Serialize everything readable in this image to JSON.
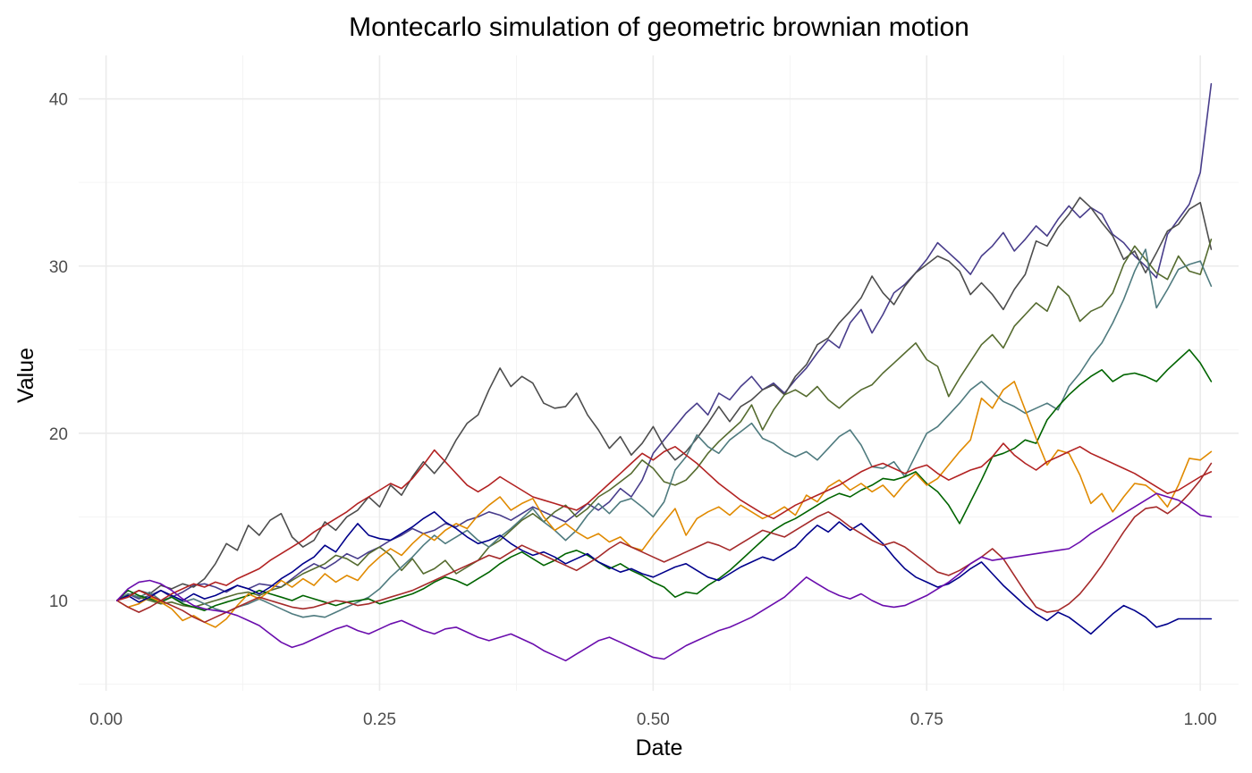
{
  "chart_data": {
    "type": "line",
    "title": "Montecarlo simulation of geometric brownian motion",
    "xlabel": "Date",
    "ylabel": "Value",
    "xlim": [
      -0.025,
      1.035
    ],
    "ylim": [
      4.6,
      42.6
    ],
    "x_ticks": [
      0,
      0.25,
      0.5,
      0.75,
      1
    ],
    "x_tick_labels": [
      "0.00",
      "0.25",
      "0.50",
      "0.75",
      "1.00"
    ],
    "y_ticks": [
      10,
      20,
      30,
      40
    ],
    "y_tick_labels": [
      "10",
      "20",
      "30",
      "40"
    ],
    "grid": true,
    "legend": "none",
    "x": [
      0.01,
      0.02,
      0.03,
      0.04,
      0.05,
      0.06,
      0.07,
      0.08,
      0.09,
      0.1,
      0.11,
      0.12,
      0.13,
      0.14,
      0.15,
      0.16,
      0.17,
      0.18,
      0.19,
      0.2,
      0.21,
      0.22,
      0.23,
      0.24,
      0.25,
      0.26,
      0.27,
      0.28,
      0.29,
      0.3,
      0.31,
      0.32,
      0.33,
      0.34,
      0.35,
      0.36,
      0.37,
      0.38,
      0.39,
      0.4,
      0.41,
      0.42,
      0.43,
      0.44,
      0.45,
      0.46,
      0.47,
      0.48,
      0.49,
      0.5,
      0.51,
      0.52,
      0.53,
      0.54,
      0.55,
      0.56,
      0.57,
      0.58,
      0.59,
      0.6,
      0.61,
      0.62,
      0.63,
      0.64,
      0.65,
      0.66,
      0.67,
      0.68,
      0.69,
      0.7,
      0.71,
      0.72,
      0.73,
      0.74,
      0.75,
      0.76,
      0.77,
      0.78,
      0.79,
      0.8,
      0.81,
      0.82,
      0.83,
      0.84,
      0.85,
      0.86,
      0.87,
      0.88,
      0.89,
      0.9,
      0.91,
      0.92,
      0.93,
      0.94,
      0.95,
      0.96,
      0.97,
      0.98,
      0.99,
      1.0,
      1.01
    ],
    "series": [
      {
        "color": "#483d8b",
        "values": [
          10.0,
          10.4,
          10.1,
          10.3,
          10.6,
          10.2,
          10.5,
          10.9,
          11.0,
          10.8,
          10.5,
          10.9,
          10.7,
          11.0,
          10.9,
          10.8,
          11.3,
          11.8,
          12.2,
          11.9,
          12.3,
          12.8,
          12.5,
          12.9,
          13.2,
          13.6,
          13.9,
          14.3,
          14.0,
          14.2,
          14.6,
          14.4,
          14.8,
          15.0,
          15.3,
          15.1,
          14.8,
          15.2,
          15.6,
          15.3,
          15.0,
          14.7,
          15.2,
          15.8,
          15.4,
          15.9,
          16.7,
          16.2,
          17.2,
          18.8,
          19.6,
          20.4,
          21.2,
          21.8,
          21.1,
          22.4,
          22.0,
          22.8,
          23.4,
          22.6,
          23.0,
          22.4,
          23.2,
          23.9,
          24.8,
          25.6,
          25.1,
          26.6,
          27.4,
          26.0,
          27.1,
          28.4,
          28.9,
          29.6,
          30.4,
          31.4,
          30.8,
          30.2,
          29.5,
          30.6,
          31.2,
          32.0,
          30.9,
          31.6,
          32.4,
          31.8,
          32.8,
          33.6,
          32.9,
          33.5,
          33.1,
          31.9,
          31.4,
          30.6,
          30.0,
          29.3,
          31.9,
          32.8,
          33.7,
          35.6,
          40.9
        ]
      },
      {
        "color": "#4d4d4d",
        "values": [
          10.0,
          10.3,
          10.6,
          10.4,
          10.9,
          10.7,
          11.0,
          10.8,
          11.3,
          12.2,
          13.4,
          13.0,
          14.5,
          13.9,
          14.8,
          15.2,
          13.8,
          13.2,
          13.6,
          14.7,
          14.2,
          15.0,
          15.4,
          16.2,
          15.6,
          16.9,
          16.3,
          17.4,
          18.3,
          17.6,
          18.4,
          19.6,
          20.6,
          21.1,
          22.6,
          23.9,
          22.8,
          23.4,
          23.0,
          21.8,
          21.5,
          21.6,
          22.4,
          21.1,
          20.2,
          19.1,
          19.8,
          18.7,
          19.4,
          20.4,
          19.2,
          18.4,
          18.9,
          19.7,
          20.6,
          21.6,
          20.7,
          21.6,
          22.0,
          22.6,
          22.9,
          22.3,
          23.4,
          24.1,
          25.3,
          25.7,
          26.6,
          27.3,
          28.1,
          29.4,
          28.4,
          27.7,
          28.8,
          29.6,
          30.1,
          30.6,
          30.3,
          29.7,
          28.3,
          29.0,
          28.3,
          27.4,
          28.6,
          29.5,
          31.5,
          31.2,
          32.3,
          33.1,
          34.1,
          33.5,
          32.6,
          31.8,
          30.4,
          30.9,
          29.6,
          30.8,
          32.1,
          32.5,
          33.4,
          33.8,
          31.0
        ]
      },
      {
        "color": "#556b2f",
        "values": [
          10.0,
          10.4,
          10.2,
          10.0,
          9.8,
          9.9,
          9.7,
          9.6,
          9.8,
          10.0,
          10.2,
          10.4,
          10.5,
          10.3,
          10.6,
          10.8,
          11.2,
          11.6,
          11.9,
          12.2,
          12.7,
          12.5,
          12.1,
          12.8,
          13.2,
          12.7,
          11.8,
          12.5,
          11.6,
          11.9,
          12.4,
          11.6,
          12.0,
          12.4,
          13.2,
          13.6,
          14.2,
          14.8,
          15.2,
          14.7,
          15.3,
          15.7,
          15.0,
          15.5,
          16.2,
          16.6,
          17.1,
          17.6,
          18.4,
          17.9,
          17.1,
          16.9,
          17.2,
          17.9,
          18.8,
          19.5,
          20.1,
          20.7,
          21.7,
          20.2,
          21.4,
          22.3,
          22.6,
          22.2,
          22.8,
          22.0,
          21.5,
          22.1,
          22.6,
          22.9,
          23.6,
          24.2,
          24.8,
          25.4,
          24.4,
          24.0,
          22.2,
          23.3,
          24.3,
          25.3,
          25.9,
          25.1,
          26.4,
          27.1,
          27.8,
          27.3,
          28.8,
          28.2,
          26.7,
          27.3,
          27.6,
          28.4,
          30.1,
          31.2,
          30.4,
          29.6,
          29.2,
          30.6,
          29.7,
          29.5,
          31.6
        ]
      },
      {
        "color": "#4f7b7f",
        "values": [
          10.0,
          10.4,
          10.2,
          10.5,
          10.0,
          10.2,
          9.9,
          10.1,
          9.8,
          9.5,
          9.3,
          9.6,
          9.8,
          10.1,
          9.8,
          9.5,
          9.2,
          9.0,
          9.1,
          9.0,
          9.3,
          9.6,
          9.9,
          10.2,
          10.7,
          11.4,
          12.0,
          12.6,
          13.3,
          13.9,
          13.4,
          13.8,
          14.2,
          13.6,
          13.2,
          13.8,
          14.3,
          14.9,
          15.5,
          14.7,
          14.2,
          13.6,
          14.2,
          15.1,
          15.8,
          15.2,
          15.9,
          16.1,
          15.6,
          15.0,
          15.9,
          17.8,
          18.6,
          19.9,
          19.2,
          18.8,
          19.6,
          20.1,
          20.6,
          19.7,
          19.4,
          18.9,
          18.6,
          18.9,
          18.4,
          19.1,
          19.8,
          20.2,
          19.3,
          18.0,
          17.9,
          18.3,
          17.4,
          18.7,
          20.0,
          20.4,
          21.1,
          21.8,
          22.6,
          23.1,
          22.5,
          21.9,
          21.6,
          21.2,
          21.5,
          21.8,
          21.4,
          22.8,
          23.6,
          24.6,
          25.4,
          26.6,
          28.0,
          29.7,
          31.0,
          27.5,
          28.6,
          29.8,
          30.1,
          30.3,
          28.8
        ]
      },
      {
        "color": "#006400",
        "values": [
          10.0,
          10.6,
          10.3,
          10.1,
          9.9,
          10.2,
          9.8,
          9.6,
          9.4,
          9.7,
          9.9,
          10.1,
          10.3,
          10.6,
          10.4,
          10.2,
          10.0,
          10.3,
          10.1,
          9.9,
          9.7,
          9.9,
          10.0,
          10.1,
          9.8,
          10.0,
          10.2,
          10.4,
          10.7,
          11.1,
          11.4,
          11.2,
          10.9,
          11.3,
          11.7,
          12.2,
          12.6,
          12.9,
          12.5,
          12.1,
          12.4,
          12.8,
          13.0,
          12.7,
          12.3,
          11.9,
          12.2,
          11.8,
          11.5,
          11.1,
          10.8,
          10.2,
          10.5,
          10.4,
          10.9,
          11.3,
          11.8,
          12.4,
          13.0,
          13.6,
          14.2,
          14.6,
          14.9,
          15.3,
          15.7,
          16.1,
          16.4,
          16.2,
          16.6,
          16.9,
          17.3,
          17.2,
          17.4,
          17.7,
          17.0,
          16.5,
          15.7,
          14.6,
          15.9,
          17.2,
          18.6,
          18.8,
          19.1,
          19.6,
          19.4,
          20.8,
          21.6,
          22.3,
          22.9,
          23.4,
          23.8,
          23.1,
          23.5,
          23.6,
          23.4,
          23.1,
          23.8,
          24.4,
          25.0,
          24.2,
          23.1
        ]
      },
      {
        "color": "#e08a00",
        "values": [
          10.0,
          9.6,
          9.8,
          10.2,
          9.9,
          9.5,
          8.8,
          9.1,
          8.7,
          8.4,
          8.9,
          9.7,
          10.4,
          10.1,
          10.6,
          11.2,
          10.8,
          11.3,
          10.9,
          11.6,
          11.1,
          11.5,
          11.2,
          12.0,
          12.6,
          13.1,
          12.7,
          13.4,
          14.0,
          13.6,
          14.2,
          14.6,
          14.3,
          15.1,
          15.7,
          16.2,
          15.4,
          15.8,
          16.1,
          15.0,
          14.2,
          14.6,
          14.1,
          13.7,
          14.0,
          13.5,
          13.8,
          13.2,
          13.0,
          13.9,
          14.7,
          15.5,
          13.9,
          14.9,
          15.3,
          15.6,
          15.1,
          15.7,
          15.3,
          14.9,
          15.2,
          15.6,
          15.1,
          16.3,
          15.9,
          16.8,
          17.2,
          16.6,
          17.0,
          16.5,
          16.9,
          16.2,
          17.0,
          17.6,
          16.9,
          17.3,
          18.1,
          18.9,
          19.6,
          22.1,
          21.5,
          22.6,
          23.1,
          21.4,
          19.7,
          18.1,
          19.0,
          18.8,
          17.5,
          15.8,
          16.4,
          15.3,
          16.2,
          17.0,
          16.9,
          16.4,
          15.6,
          16.9,
          18.5,
          18.4,
          18.9
        ]
      },
      {
        "color": "#00008b",
        "values": [
          10.0,
          10.3,
          9.9,
          10.2,
          10.6,
          10.3,
          10.0,
          10.4,
          10.1,
          10.3,
          10.6,
          10.9,
          10.7,
          10.4,
          10.8,
          11.3,
          11.7,
          12.2,
          12.6,
          13.3,
          12.9,
          13.8,
          14.6,
          13.9,
          13.7,
          13.6,
          14.0,
          14.4,
          14.9,
          15.3,
          14.7,
          14.3,
          13.8,
          13.4,
          13.6,
          13.9,
          13.4,
          13.0,
          12.7,
          12.9,
          12.6,
          12.2,
          12.5,
          12.8,
          12.3,
          12.0,
          11.7,
          11.9,
          11.6,
          11.4,
          11.7,
          12.0,
          12.2,
          11.8,
          11.4,
          11.2,
          11.6,
          12.0,
          12.3,
          12.6,
          12.4,
          12.8,
          13.2,
          13.9,
          14.5,
          14.1,
          14.7,
          14.2,
          14.6,
          14.0,
          13.4,
          12.6,
          11.9,
          11.4,
          11.1,
          10.8,
          11.0,
          11.4,
          11.9,
          12.3,
          11.6,
          10.9,
          10.3,
          9.7,
          9.2,
          8.8,
          9.3,
          9.0,
          8.5,
          8.0,
          8.6,
          9.2,
          9.7,
          9.4,
          9.0,
          8.4,
          8.6,
          8.9,
          8.9,
          8.9,
          8.9
        ]
      },
      {
        "color": "#b22222",
        "values": [
          10.0,
          10.2,
          10.6,
          10.3,
          10.0,
          10.4,
          10.7,
          11.0,
          10.8,
          11.1,
          10.9,
          11.3,
          11.6,
          11.9,
          12.4,
          12.8,
          13.2,
          13.6,
          14.1,
          14.5,
          14.9,
          15.3,
          15.8,
          16.2,
          16.6,
          17.0,
          16.7,
          17.3,
          18.1,
          19.0,
          18.3,
          17.6,
          16.9,
          16.5,
          16.9,
          17.4,
          17.0,
          16.6,
          16.2,
          16.0,
          15.8,
          15.6,
          15.4,
          15.8,
          16.4,
          17.0,
          17.6,
          18.2,
          18.8,
          18.4,
          18.9,
          19.2,
          18.7,
          18.2,
          17.6,
          17.0,
          16.5,
          16.0,
          15.6,
          15.2,
          14.9,
          15.3,
          15.7,
          16.0,
          16.3,
          16.6,
          16.9,
          17.3,
          17.7,
          18.0,
          18.2,
          17.9,
          17.6,
          17.9,
          18.1,
          17.6,
          17.2,
          17.5,
          17.8,
          18.0,
          18.6,
          19.4,
          18.7,
          18.2,
          17.8,
          18.3,
          18.6,
          18.9,
          19.2,
          18.8,
          18.5,
          18.2,
          17.9,
          17.6,
          17.2,
          16.8,
          16.4,
          16.6,
          17.0,
          17.4,
          17.7
        ]
      },
      {
        "color": "#a52a2a",
        "values": [
          10.0,
          9.6,
          9.3,
          9.6,
          10.0,
          9.7,
          9.4,
          9.0,
          8.7,
          9.0,
          9.3,
          9.6,
          9.9,
          10.2,
          10.0,
          9.8,
          9.6,
          9.5,
          9.6,
          9.8,
          10.0,
          9.9,
          9.7,
          9.8,
          10.0,
          10.2,
          10.4,
          10.6,
          10.9,
          11.2,
          11.5,
          11.8,
          12.1,
          12.4,
          12.7,
          12.5,
          12.9,
          13.3,
          13.0,
          12.7,
          12.4,
          12.1,
          11.8,
          12.2,
          12.6,
          13.1,
          13.5,
          13.2,
          12.9,
          12.6,
          12.3,
          12.6,
          12.9,
          13.2,
          13.5,
          13.3,
          13.0,
          13.4,
          13.8,
          14.2,
          14.0,
          13.8,
          14.2,
          14.6,
          15.0,
          15.3,
          14.9,
          14.4,
          14.0,
          13.6,
          13.3,
          13.5,
          13.2,
          12.7,
          12.2,
          11.7,
          11.5,
          11.8,
          12.2,
          12.6,
          13.1,
          12.5,
          11.5,
          10.5,
          9.6,
          9.3,
          9.4,
          9.8,
          10.4,
          11.2,
          12.1,
          13.1,
          14.1,
          15.0,
          15.5,
          15.6,
          15.2,
          15.7,
          16.4,
          17.2,
          18.2
        ]
      },
      {
        "color": "#6a0dad",
        "values": [
          10.0,
          10.7,
          11.1,
          11.2,
          11.0,
          10.6,
          10.1,
          9.7,
          9.5,
          9.4,
          9.3,
          9.1,
          8.8,
          8.5,
          8.0,
          7.5,
          7.2,
          7.4,
          7.7,
          8.0,
          8.3,
          8.5,
          8.2,
          8.0,
          8.3,
          8.6,
          8.8,
          8.5,
          8.2,
          8.0,
          8.3,
          8.4,
          8.1,
          7.8,
          7.6,
          7.8,
          8.0,
          7.7,
          7.4,
          7.0,
          6.7,
          6.4,
          6.8,
          7.2,
          7.6,
          7.8,
          7.5,
          7.2,
          6.9,
          6.6,
          6.5,
          6.9,
          7.3,
          7.6,
          7.9,
          8.2,
          8.4,
          8.7,
          9.0,
          9.4,
          9.8,
          10.2,
          10.8,
          11.4,
          11.0,
          10.6,
          10.3,
          10.1,
          10.4,
          10.0,
          9.7,
          9.6,
          9.7,
          10.0,
          10.3,
          10.7,
          11.1,
          11.6,
          12.2,
          12.6,
          12.4,
          12.5,
          12.6,
          12.7,
          12.8,
          12.9,
          13.0,
          13.1,
          13.5,
          14.0,
          14.4,
          14.8,
          15.2,
          15.6,
          16.0,
          16.4,
          16.2,
          16.0,
          15.6,
          15.1,
          15.0
        ]
      }
    ]
  }
}
